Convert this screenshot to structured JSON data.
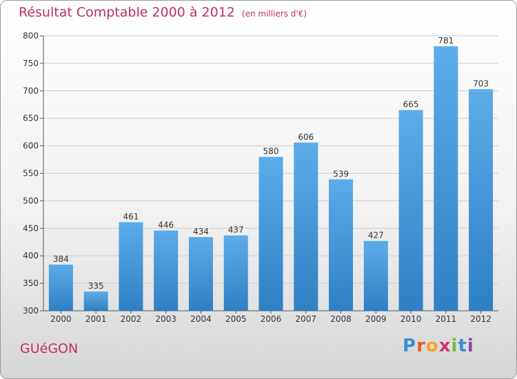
{
  "title": "Résultat Comptable 2000 à 2012",
  "unit": "(en milliers d'€)",
  "commune": "GUéGON",
  "brand": {
    "letters": [
      "P",
      "r",
      "o",
      "x",
      "i",
      "t",
      "i"
    ],
    "colors": [
      "#3a8fd6",
      "#e8582c",
      "#f5a623",
      "#d6336c",
      "#6bbf3a",
      "#3a8fd6",
      "#8e44ad"
    ]
  },
  "colors": {
    "bar": "#3d8fd4",
    "bar_light": "#5aaae6",
    "title": "#c0305a",
    "grid": "#cccccc"
  },
  "chart_data": {
    "type": "bar",
    "categories": [
      "2000",
      "2001",
      "2002",
      "2003",
      "2004",
      "2005",
      "2006",
      "2007",
      "2008",
      "2009",
      "2010",
      "2011",
      "2012"
    ],
    "values": [
      384,
      335,
      461,
      446,
      434,
      437,
      580,
      606,
      539,
      427,
      665,
      781,
      703
    ],
    "ylim": [
      300,
      800
    ],
    "yticks": [
      300,
      350,
      400,
      450,
      500,
      550,
      600,
      650,
      700,
      750,
      800
    ],
    "grid": true
  }
}
